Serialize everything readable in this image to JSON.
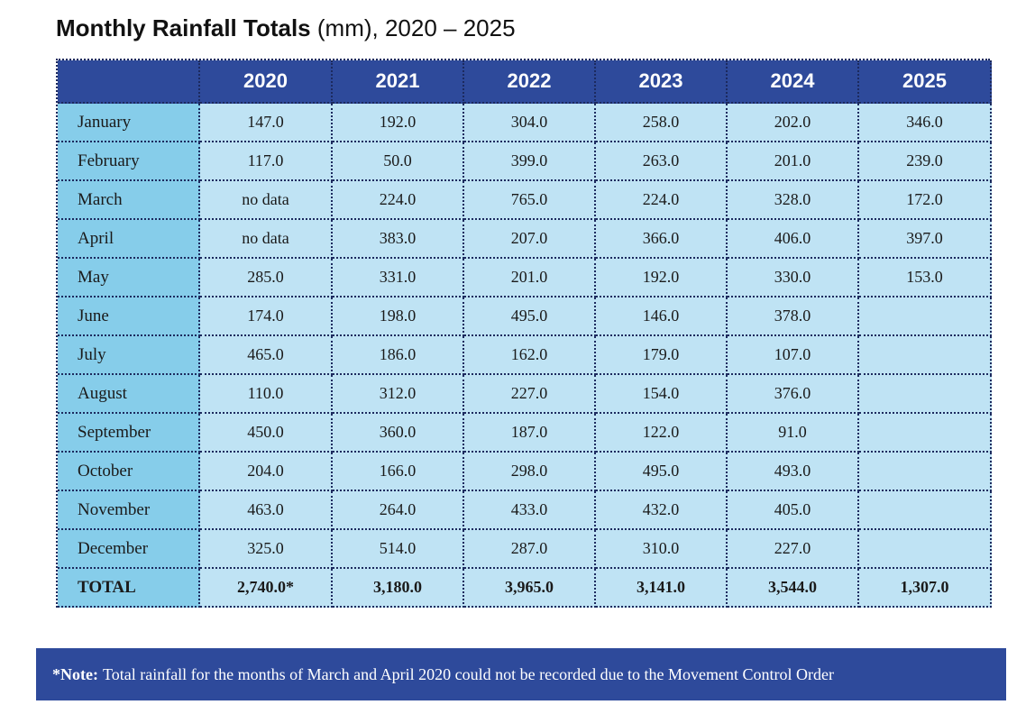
{
  "title": {
    "main": "Monthly Rainfall Totals",
    "rest": "(mm), 2020 – 2025"
  },
  "table": {
    "columns": [
      "2020",
      "2021",
      "2022",
      "2023",
      "2024",
      "2025"
    ],
    "rows": [
      {
        "label": "January",
        "values": [
          "147.0",
          "192.0",
          "304.0",
          "258.0",
          "202.0",
          "346.0"
        ]
      },
      {
        "label": "February",
        "values": [
          "117.0",
          "50.0",
          "399.0",
          "263.0",
          "201.0",
          "239.0"
        ]
      },
      {
        "label": "March",
        "values": [
          "no data",
          "224.0",
          "765.0",
          "224.0",
          "328.0",
          "172.0"
        ]
      },
      {
        "label": "April",
        "values": [
          "no data",
          "383.0",
          "207.0",
          "366.0",
          "406.0",
          "397.0"
        ]
      },
      {
        "label": "May",
        "values": [
          "285.0",
          "331.0",
          "201.0",
          "192.0",
          "330.0",
          "153.0"
        ]
      },
      {
        "label": "June",
        "values": [
          "174.0",
          "198.0",
          "495.0",
          "146.0",
          "378.0",
          null
        ]
      },
      {
        "label": "July",
        "values": [
          "465.0",
          "186.0",
          "162.0",
          "179.0",
          "107.0",
          null
        ]
      },
      {
        "label": "August",
        "values": [
          "110.0",
          "312.0",
          "227.0",
          "154.0",
          "376.0",
          null
        ]
      },
      {
        "label": "September",
        "values": [
          "450.0",
          "360.0",
          "187.0",
          "122.0",
          "91.0",
          null
        ]
      },
      {
        "label": "October",
        "values": [
          "204.0",
          "166.0",
          "298.0",
          "495.0",
          "493.0",
          null
        ]
      },
      {
        "label": "November",
        "values": [
          "463.0",
          "264.0",
          "433.0",
          "432.0",
          "405.0",
          null
        ]
      },
      {
        "label": "December",
        "values": [
          "325.0",
          "514.0",
          "287.0",
          "310.0",
          "227.0",
          null
        ]
      }
    ],
    "total": {
      "label": "TOTAL",
      "values": [
        "2,740.0*",
        "3,180.0",
        "3,965.0",
        "3,141.0",
        "3,544.0",
        "1,307.0"
      ]
    }
  },
  "note": {
    "label": "*Note:",
    "text": "Total rainfall for the months of March and April 2020 could not be recorded due to the Movement Control Order"
  }
}
